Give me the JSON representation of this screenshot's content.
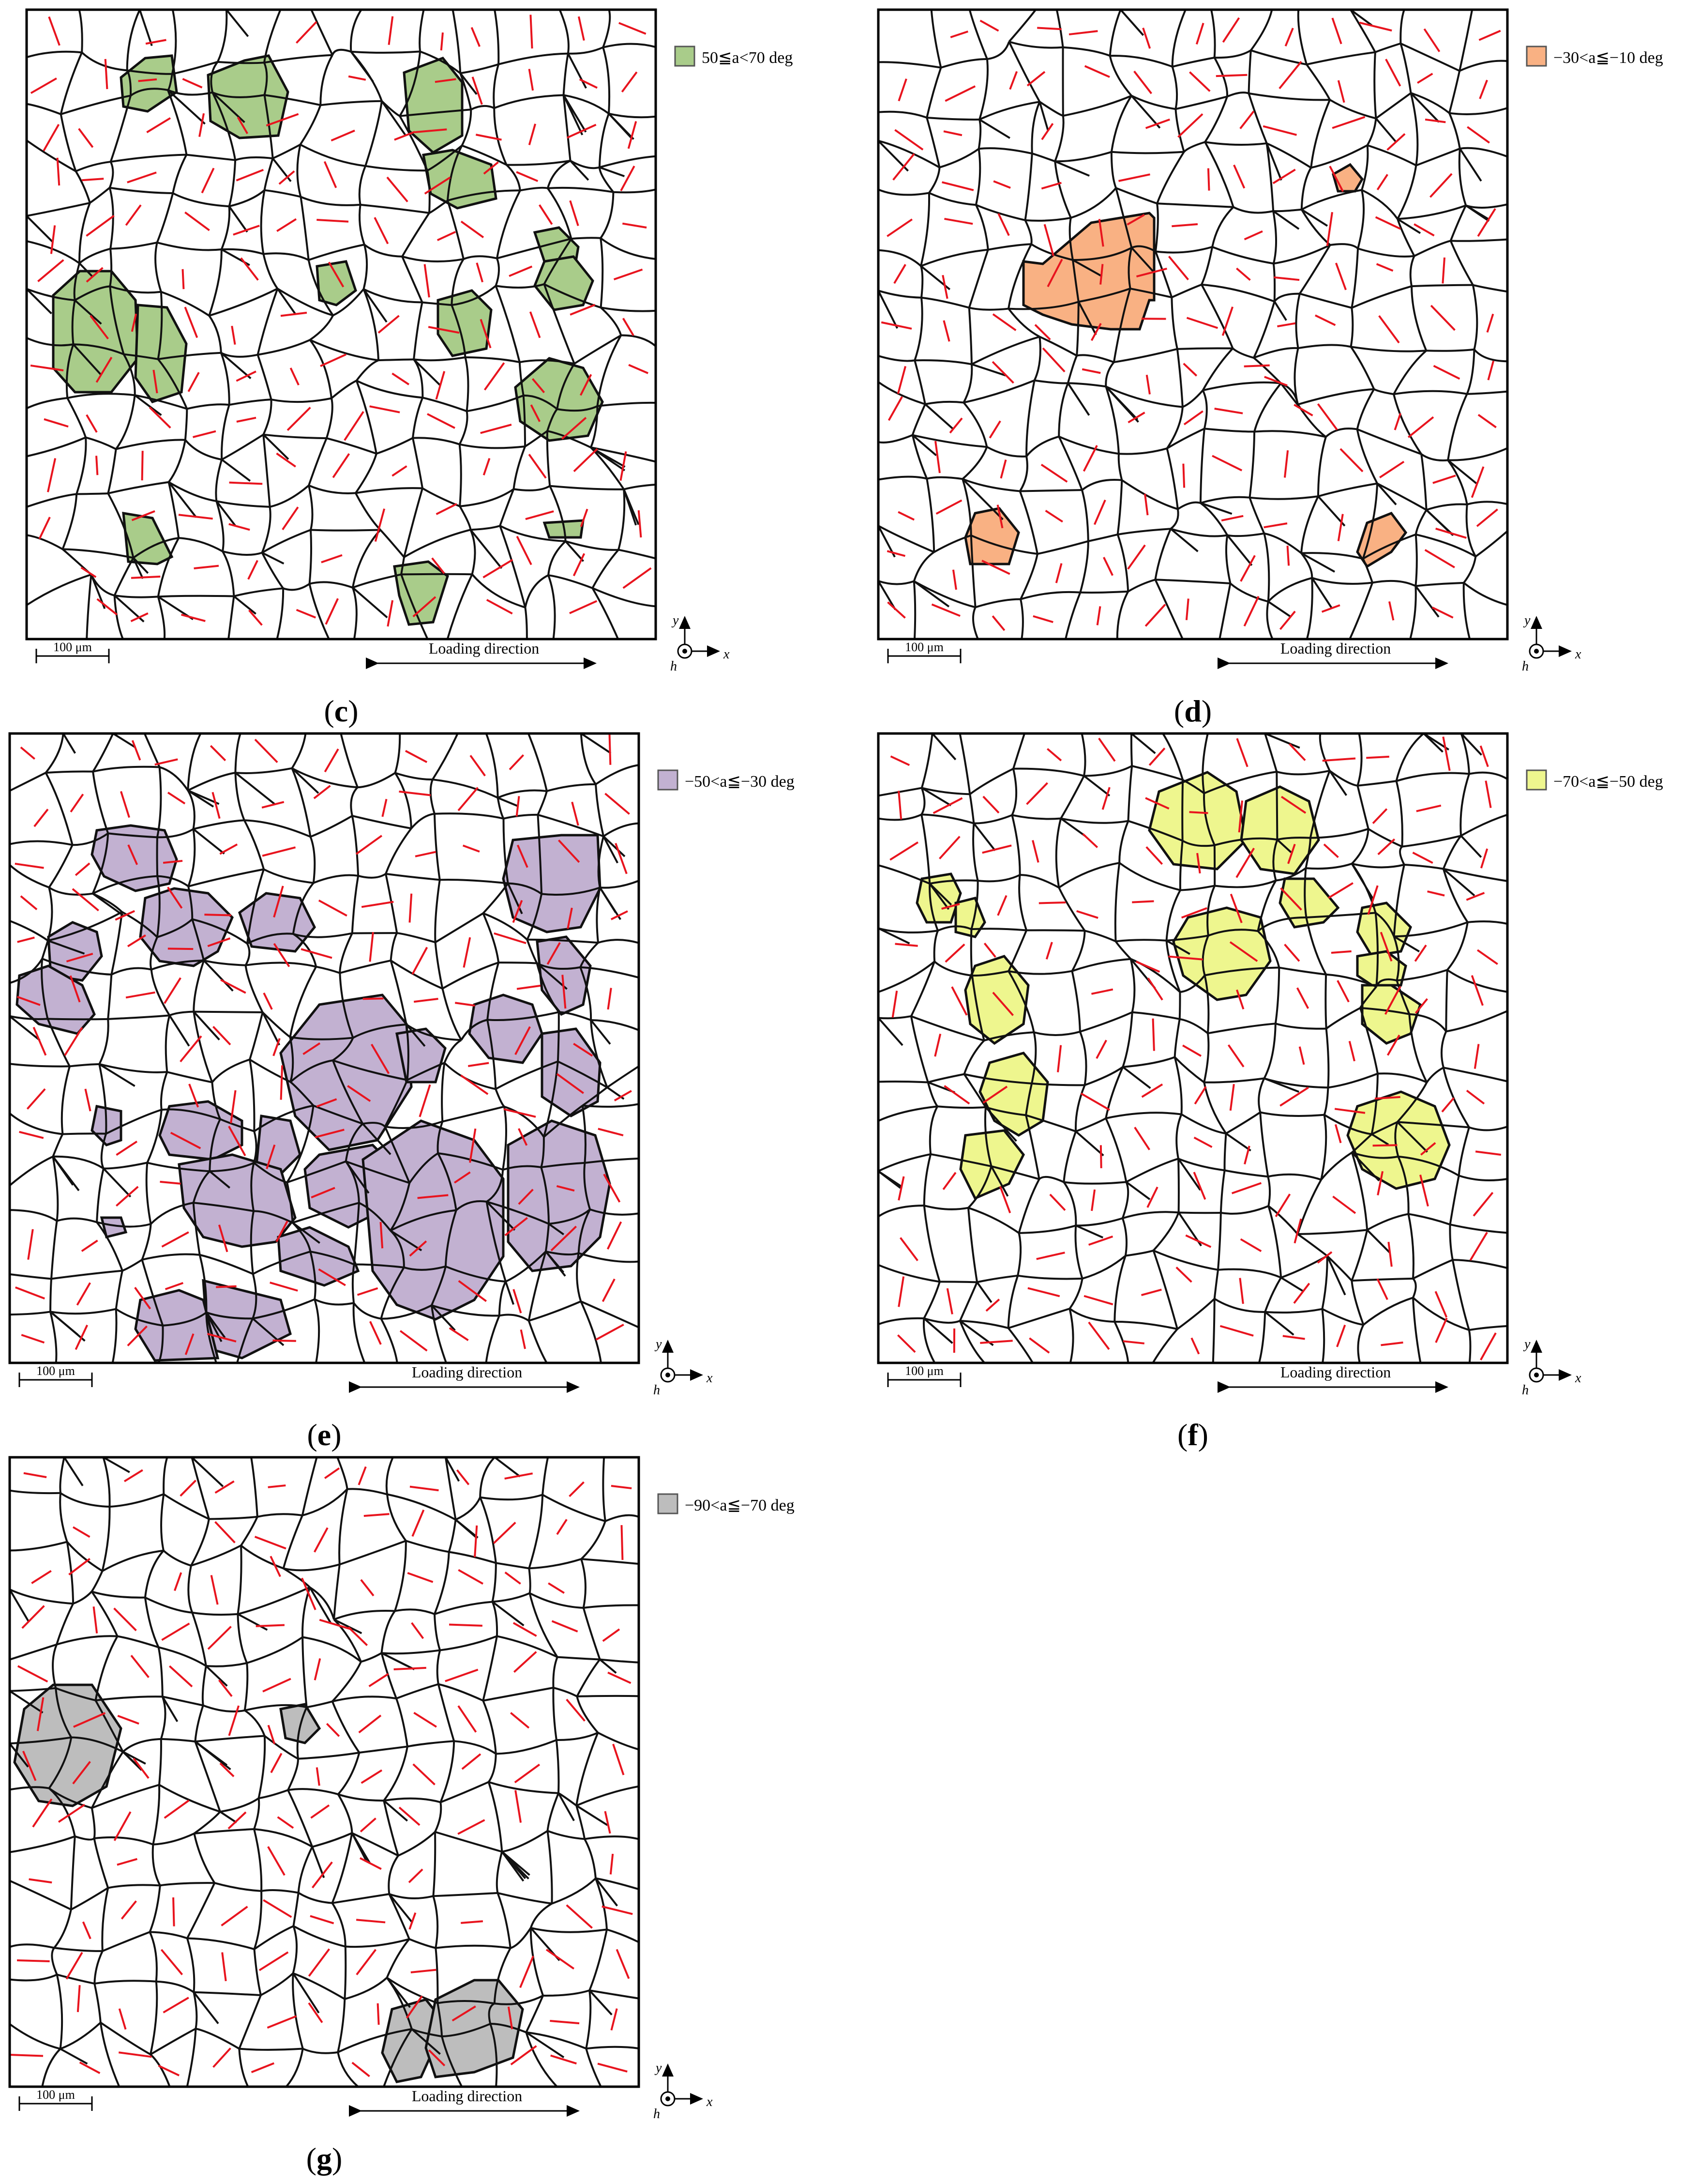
{
  "figure": {
    "panels": [
      {
        "id": "c",
        "caption_letter": "c",
        "legend": {
          "label": "50≦a<70 deg",
          "color": "#a9cc8a"
        },
        "scale_label": "100 μm",
        "direction_label": "Loading direction",
        "axis_y": "y",
        "axis_x": "x",
        "axis_h": "h"
      },
      {
        "id": "d",
        "caption_letter": "d",
        "legend": {
          "label": "−30<a≦−10 deg",
          "color": "#f9b183"
        },
        "scale_label": "100 μm",
        "direction_label": "Loading direction",
        "axis_y": "y",
        "axis_x": "x",
        "axis_h": "h"
      },
      {
        "id": "e",
        "caption_letter": "e",
        "legend": {
          "label": "−50<a≦−30 deg",
          "color": "#c2b1d1"
        },
        "scale_label": "100 μm",
        "direction_label": "Loading direction",
        "axis_y": "y",
        "axis_x": "x",
        "axis_h": "h"
      },
      {
        "id": "f",
        "caption_letter": "f",
        "legend": {
          "label": "−70<a≦−50 deg",
          "color": "#eef68e"
        },
        "scale_label": "100 μm",
        "direction_label": "Loading direction",
        "axis_y": "y",
        "axis_x": "x",
        "axis_h": "h"
      },
      {
        "id": "g",
        "caption_letter": "g",
        "legend": {
          "label": "−90<a≦−70 deg",
          "color": "#bdbdbd"
        },
        "scale_label": "100 μm",
        "direction_label": "Loading direction",
        "axis_y": "y",
        "axis_x": "x",
        "axis_h": "h"
      }
    ],
    "colors": {
      "boundary": "#111111",
      "orientation_line": "#e8141e"
    }
  }
}
